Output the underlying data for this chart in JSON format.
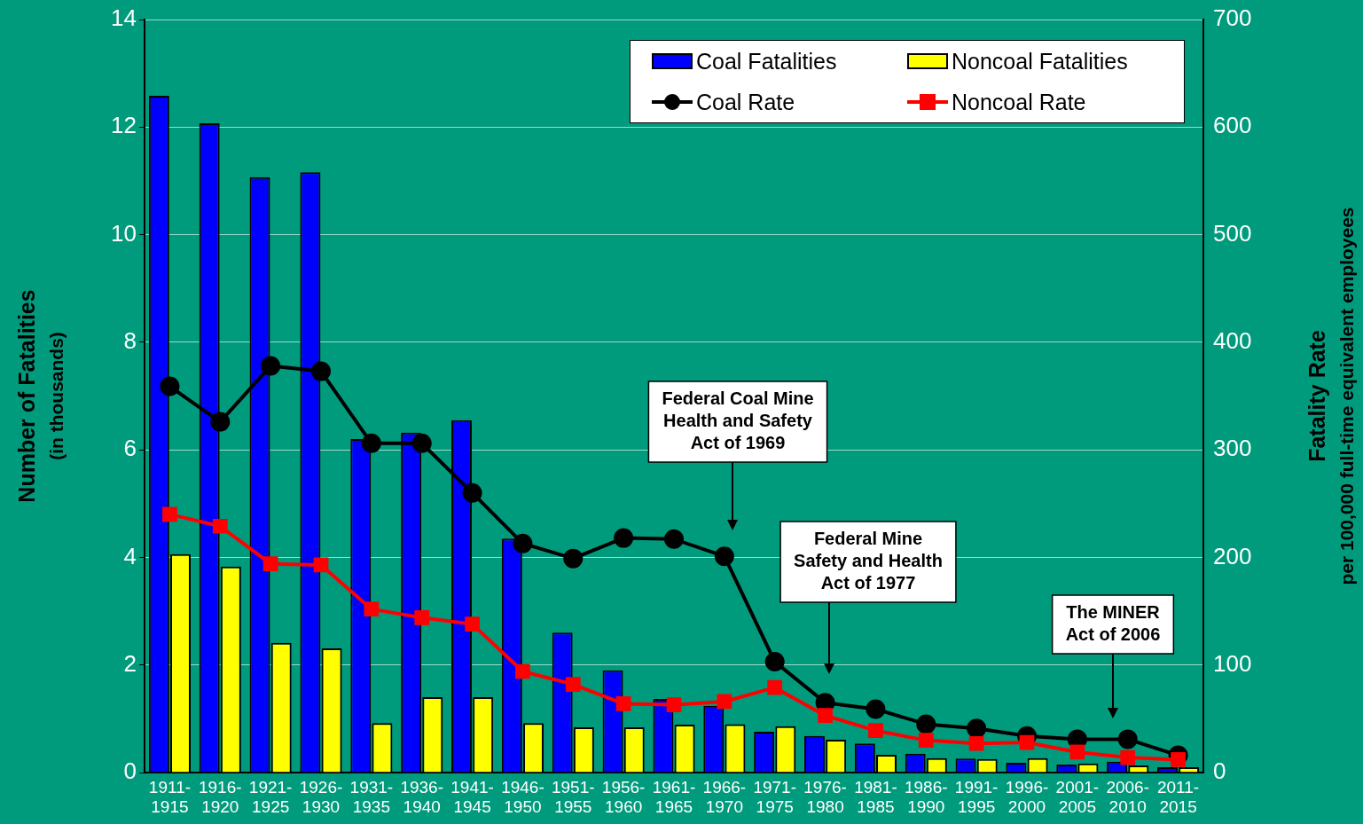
{
  "chart_data": {
    "type": "bar",
    "categories": [
      "1911-1915",
      "1916-1920",
      "1921-1925",
      "1926-1930",
      "1931-1935",
      "1936-1940",
      "1941-1945",
      "1946-1950",
      "1951-1955",
      "1956-1960",
      "1961-1965",
      "1966-1970",
      "1971-1975",
      "1976-1980",
      "1981-1985",
      "1986-1990",
      "1991-1995",
      "1996-2000",
      "2001-2005",
      "2006-2010",
      "2011-2015"
    ],
    "series": [
      {
        "name": "Coal Fatalities",
        "color": "#0000ff",
        "values": [
          12.58,
          12.07,
          11.07,
          11.16,
          6.2,
          6.32,
          6.55,
          4.35,
          2.6,
          1.9,
          1.37,
          1.24,
          0.76,
          0.68,
          0.54,
          0.35,
          0.26,
          0.18,
          0.15,
          0.2,
          0.1
        ]
      },
      {
        "name": "Noncoal Fatalities",
        "color": "#ffff00",
        "values": [
          4.06,
          3.83,
          2.41,
          2.31,
          0.92,
          1.4,
          1.4,
          0.92,
          0.84,
          0.84,
          0.89,
          0.9,
          0.86,
          0.61,
          0.33,
          0.27,
          0.25,
          0.27,
          0.17,
          0.13,
          0.1
        ]
      },
      {
        "name": "Coal Rate",
        "type": "line",
        "axis": "y2",
        "marker": "circle",
        "color": "#000000",
        "values": [
          359,
          326,
          378,
          373,
          306,
          306,
          260,
          213,
          199,
          218,
          217,
          201,
          103,
          65,
          59,
          45,
          41,
          34,
          31,
          31,
          16
        ]
      },
      {
        "name": "Noncoal Rate",
        "type": "line",
        "axis": "y2",
        "marker": "square",
        "color": "#ff0000",
        "values": [
          240,
          229,
          194,
          193,
          152,
          144,
          138,
          94,
          82,
          64,
          63,
          66,
          79,
          53,
          39,
          30,
          27,
          28,
          19,
          14,
          12
        ]
      }
    ],
    "ylabel": "Number of Fatalities\n(in thousands)",
    "y2label": "Fatality Rate\nper 100,000 full-time equivalent employees",
    "ylim": [
      0,
      14
    ],
    "yticks": [
      0,
      2,
      4,
      6,
      8,
      10,
      12,
      14
    ],
    "y2lim": [
      0,
      700
    ],
    "y2ticks": [
      0,
      100,
      200,
      300,
      400,
      500,
      600,
      700
    ],
    "grid": "y",
    "legend": "top right",
    "annotations": [
      "Federal Coal Mine\nHealth and Safety\nAct of 1969",
      "Federal Mine\nSafety and Health\nAct of 1977",
      "The MINER\nAct of 2006"
    ]
  }
}
